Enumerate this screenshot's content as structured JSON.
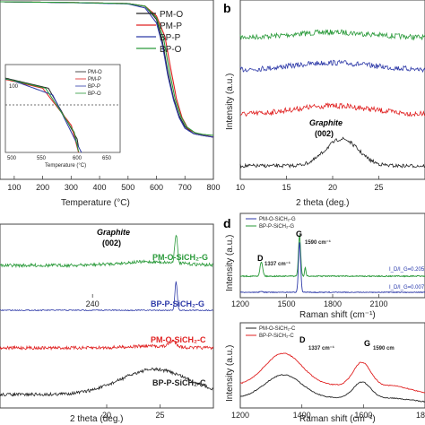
{
  "chart_data": [
    {
      "panel": "a",
      "type": "line",
      "xlabel": "Temperature (°C)",
      "ylabel": "",
      "xlim": [
        50,
        800
      ],
      "ylim": [
        0,
        100
      ],
      "xticks": [
        "100",
        "200",
        "300",
        "400",
        "500",
        "600",
        "700",
        "800"
      ],
      "legend": "top-right",
      "series": [
        {
          "name": "PM-O",
          "color": "#222222",
          "x": [
            50,
            300,
            500,
            560,
            600,
            620,
            640,
            660,
            680,
            700,
            730,
            760,
            800
          ],
          "y": [
            100,
            99.6,
            99,
            97.5,
            90,
            78,
            60,
            45,
            35,
            29,
            25,
            24,
            23
          ]
        },
        {
          "name": "PM-P",
          "color": "#e02020",
          "x": [
            50,
            300,
            500,
            560,
            600,
            630,
            650,
            670,
            690,
            710,
            740,
            770,
            800
          ],
          "y": [
            100,
            99.6,
            99,
            97.5,
            92,
            80,
            62,
            45,
            34,
            28,
            25,
            24,
            23
          ]
        },
        {
          "name": "BP-P",
          "color": "#2e3aa8",
          "x": [
            50,
            300,
            500,
            560,
            600,
            620,
            640,
            660,
            680,
            700,
            730,
            760,
            800
          ],
          "y": [
            100,
            99.5,
            98.8,
            96.5,
            88,
            76,
            58,
            44,
            34,
            28,
            25,
            24,
            23
          ]
        },
        {
          "name": "BP-O",
          "color": "#2a9a3a",
          "x": [
            50,
            300,
            500,
            560,
            600,
            625,
            645,
            665,
            685,
            705,
            735,
            765,
            800
          ],
          "y": [
            100,
            99.6,
            99,
            97.5,
            91,
            79,
            61,
            45,
            35,
            29,
            25.5,
            24.5,
            24
          ]
        }
      ],
      "inset": {
        "xlabel": "Temperature (°C)",
        "xlim": [
          500,
          660
        ],
        "ylim": [
          88,
          101
        ],
        "xticks": [
          "500",
          "550",
          "600",
          "650"
        ],
        "yticks": [
          "100"
        ],
        "legend": [
          "PM-O",
          "PM-P",
          "BP-P",
          "BP-O"
        ]
      }
    },
    {
      "panel": "b",
      "type": "line",
      "xlabel": "2 theta (deg.)",
      "ylabel": "Intensity (a.u.)",
      "xlim": [
        10,
        30
      ],
      "xticks": [
        "10",
        "15",
        "20",
        "25"
      ],
      "annotation": {
        "name": "Graphite",
        "plane": "(002)",
        "x": 21
      },
      "series": [
        {
          "name": "",
          "color": "#2a9a3a",
          "offset": 3.0
        },
        {
          "name": "",
          "color": "#2e3aa8",
          "offset": 2.1
        },
        {
          "name": "",
          "color": "#e02020",
          "offset": 1.2
        },
        {
          "name": "",
          "color": "#222222",
          "offset": 0.0
        }
      ]
    },
    {
      "panel": "c",
      "type": "line",
      "xlabel": "2 theta (deg.)",
      "xlim": [
        10,
        30
      ],
      "xticks": [
        "20",
        "25"
      ],
      "annotation": {
        "name": "Graphite",
        "plane": "(002)",
        "x": 26.5
      },
      "series": [
        {
          "name": "PM-O-SiCH₂-G",
          "color": "#2a9a3a",
          "offset": 3.1
        },
        {
          "name": "BP-P-SiCH₂-G",
          "color": "#2e3aa8",
          "offset": 2.0
        },
        {
          "name": "PM-O-SiCH₂-C",
          "color": "#e02020",
          "offset": 1.0
        },
        {
          "name": "BP-P-SiCH₂-C",
          "color": "#222222",
          "offset": 0.0
        }
      ]
    },
    {
      "panel": "d",
      "type": "line",
      "xlabel": "Raman shift (cm⁻¹)",
      "ylabel": "Intensity (a.u.)",
      "top": {
        "xlim": [
          1200,
          2400
        ],
        "xticks": [
          "1200",
          "1500",
          "1800",
          "2100",
          "240"
        ],
        "legend": [
          "PM-O-SiCH₂-G",
          "BP-P-SiCH₂-G"
        ],
        "D_label": "D",
        "D_value": "1337 cm⁻¹",
        "G_label": "G",
        "G_value": "1590 cm⁻¹",
        "ratio_green": "I_D/I_G=0.205",
        "ratio_blue": "I_D/I_G=0.007"
      },
      "bottom": {
        "xlim": [
          1200,
          1800
        ],
        "xticks": [
          "1200",
          "1400",
          "1600",
          "1800"
        ],
        "legend": [
          "PM-O-SiCH₂-C",
          "BP-P-SiCH₂-C"
        ],
        "D_label": "D",
        "D_value": "1337 cm⁻¹",
        "G_label": "G",
        "G_value": "1590 cm"
      }
    }
  ],
  "labels": {
    "a_xlabel": "Temperature (°C)",
    "b_letter": "b",
    "d_letter": "d",
    "b_xlabel": "2 theta (deg.)",
    "b_ylabel": "Intensity (a.u.)",
    "b_graphite": "Graphite",
    "b_plane": "(002)",
    "c_xlabel": "2 theta (deg.)",
    "c_graphite": "Graphite",
    "c_plane": "(002)",
    "d_ylabel_top": "Intensity (a.u.)",
    "d_ylabel_bottom": "Intensity (a.u.)",
    "d_xlabel_top": "Raman shift (cm⁻¹)",
    "d_xlabel_bottom": "Raman shift (cm⁻¹)",
    "inset_xlabel": "Temperature (°C)"
  }
}
